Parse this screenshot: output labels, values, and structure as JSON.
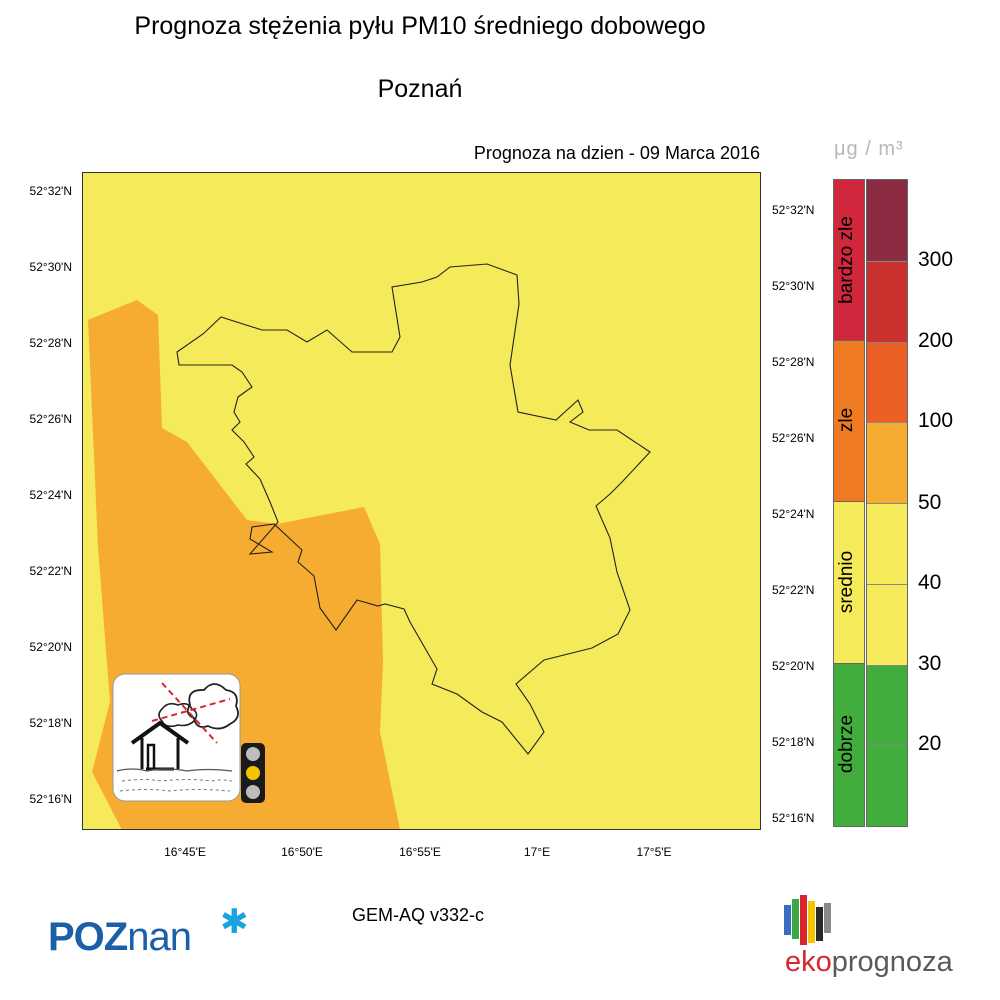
{
  "title": "Prognoza stężenia pyłu PM10 średniego dobowego",
  "subtitle": "Poznań",
  "date_label": "Prognoza na dzien -  09 Marca 2016",
  "unit": "μg / m³",
  "lat_ticks_left": [
    "52°32'N",
    "52°30'N",
    "52°28'N",
    "52°26'N",
    "52°24'N",
    "52°22'N",
    "52°20'N",
    "52°18'N",
    "52°16'N"
  ],
  "lat_ticks_right": [
    "52°32'N",
    "52°30'N",
    "52°28'N",
    "52°26'N",
    "52°24'N",
    "52°22'N",
    "52°20'N",
    "52°18'N",
    "52°16'N"
  ],
  "lon_ticks": [
    "16°45'E",
    "16°50'E",
    "16°55'E",
    "17°E",
    "17°5'E"
  ],
  "legend": {
    "categories": [
      {
        "label": "bardzo zle",
        "color": "#d0273c"
      },
      {
        "label": "zle",
        "color": "#ee7b22"
      },
      {
        "label": "srednio",
        "color": "#f5ea5a"
      },
      {
        "label": "dobrze",
        "color": "#41ad3c"
      }
    ],
    "scale": [
      {
        "color": "#8b2c42"
      },
      {
        "color": "#c9312e"
      },
      {
        "color": "#eb5e24"
      },
      {
        "color": "#f5ac31"
      },
      {
        "color": "#f5ea5a"
      },
      {
        "color": "#f5ea5a"
      },
      {
        "color": "#41ad3c"
      },
      {
        "color": "#41ad3c"
      }
    ],
    "ticks": [
      "300",
      "200",
      "100",
      "50",
      "40",
      "30",
      "20"
    ]
  },
  "map_colors": {
    "background": "#f5ea5a",
    "zone": "#f5ac31"
  },
  "traffic_light": {
    "active": "yellow"
  },
  "model_label": "GEM-AQ v332-c",
  "logos": {
    "poznan_bold": "POZ",
    "poznan_rest": "nan",
    "eko": "eko",
    "prognoza": "prognoza"
  }
}
